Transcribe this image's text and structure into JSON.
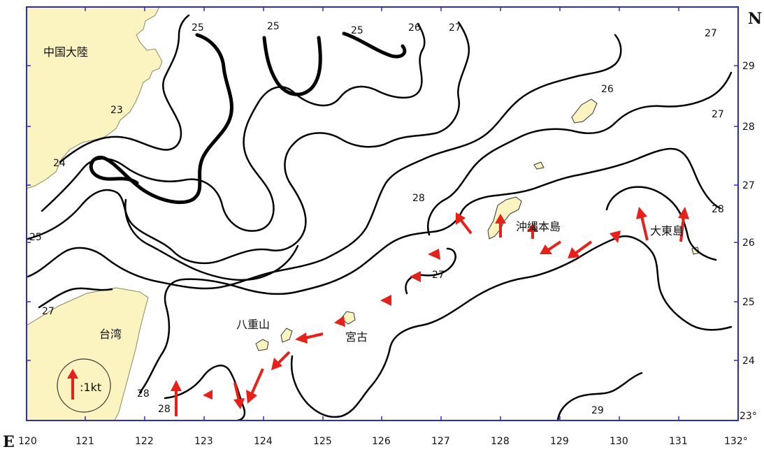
{
  "map": {
    "corner_north": "N",
    "corner_east": "E",
    "lon_ticks": [
      "120",
      "121",
      "122",
      "123",
      "124",
      "125",
      "126",
      "127",
      "128",
      "129",
      "130",
      "131",
      "132°"
    ],
    "lat_ticks": [
      "29",
      "28",
      "27",
      "26",
      "25",
      "24",
      "23°"
    ],
    "places": {
      "china": "中国大陸",
      "taiwan": "台湾",
      "okinawa": "沖縄本島",
      "daito": "大東島",
      "yaeyama": "八重山",
      "miyako": "宮古"
    },
    "contour_labels": {
      "c1": "25",
      "c2": "25",
      "c3": "25",
      "c4": "26",
      "c5": "27",
      "c6": "27",
      "c7": "26",
      "c8": "27",
      "c9": "23",
      "c10": "24",
      "c11": "25",
      "c12": "28",
      "c13": "27",
      "c14": "28",
      "c15": "27",
      "c16": "28",
      "c17": "28",
      "c18": "29"
    },
    "legend": {
      "label": ":1kt"
    },
    "colors": {
      "land": "#fbf3c0",
      "frame": "#2c2cc4",
      "arrow": "#e8201a",
      "contour": "#000000"
    }
  }
}
